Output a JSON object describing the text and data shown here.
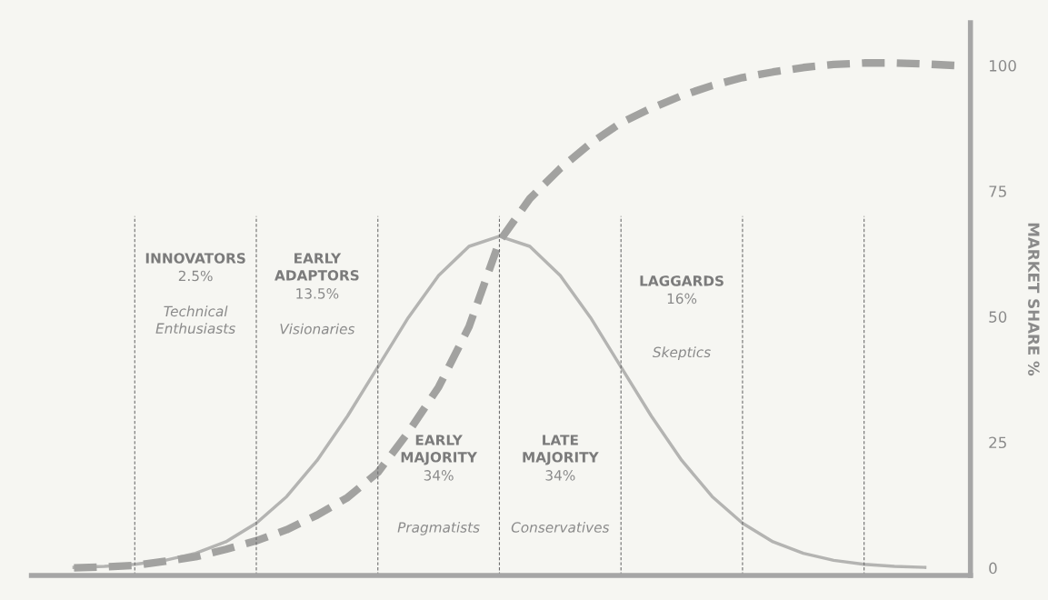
{
  "chart_data": {
    "type": "line",
    "ylabel": "MARKET SHARE %",
    "ylim": [
      -1.5,
      108.5
    ],
    "yticks": [
      0,
      25,
      50,
      75,
      100
    ],
    "tick_labels": "y",
    "grid": false,
    "legend": false,
    "marker": "none",
    "categories": [
      null,
      null,
      null,
      null,
      null,
      null,
      null,
      null,
      null,
      null,
      null,
      null,
      null,
      null,
      null,
      null,
      null,
      null,
      null,
      null,
      null,
      null,
      null,
      null,
      null,
      null,
      null,
      null,
      null,
      null
    ],
    "series": [
      {
        "color": "#b4b4b2",
        "line_style": "solid",
        "values": [
          0.1,
          0.3,
          0.7,
          1.5,
          2.9,
          5.2,
          8.9,
          14.2,
          21.4,
          30.2,
          40,
          49.8,
          58.2,
          64,
          66,
          64,
          58.2,
          49.8,
          40,
          30.2,
          21.4,
          14.2,
          8.9,
          5.2,
          2.9,
          1.5,
          0.7,
          0.3,
          0.1,
          null
        ]
      },
      {
        "color": "#a2a2a0",
        "line_style": "dashed",
        "values": [
          0,
          0.2,
          0.5,
          1.3,
          2.2,
          3.7,
          5.4,
          7.6,
          10.5,
          14,
          19,
          27,
          36,
          48,
          65,
          73.5,
          79.5,
          84.5,
          88.6,
          91.5,
          94,
          96,
          97.6,
          98.7,
          99.6,
          100.2,
          100.5,
          100.5,
          100.3,
          100
        ]
      }
    ],
    "annotations": [
      "INNOVATORS\n2.5%",
      "Technical\nEnthusiasts",
      "EARLY\nADAPTORS\n13.5%",
      "Visionaries",
      "EARLY\nMAJORITY\n34%",
      "Pragmatists",
      "LATE\nMAJORITY\n34%",
      "Conservatives",
      "LAGGARDS\n16%",
      "Skeptics"
    ]
  }
}
